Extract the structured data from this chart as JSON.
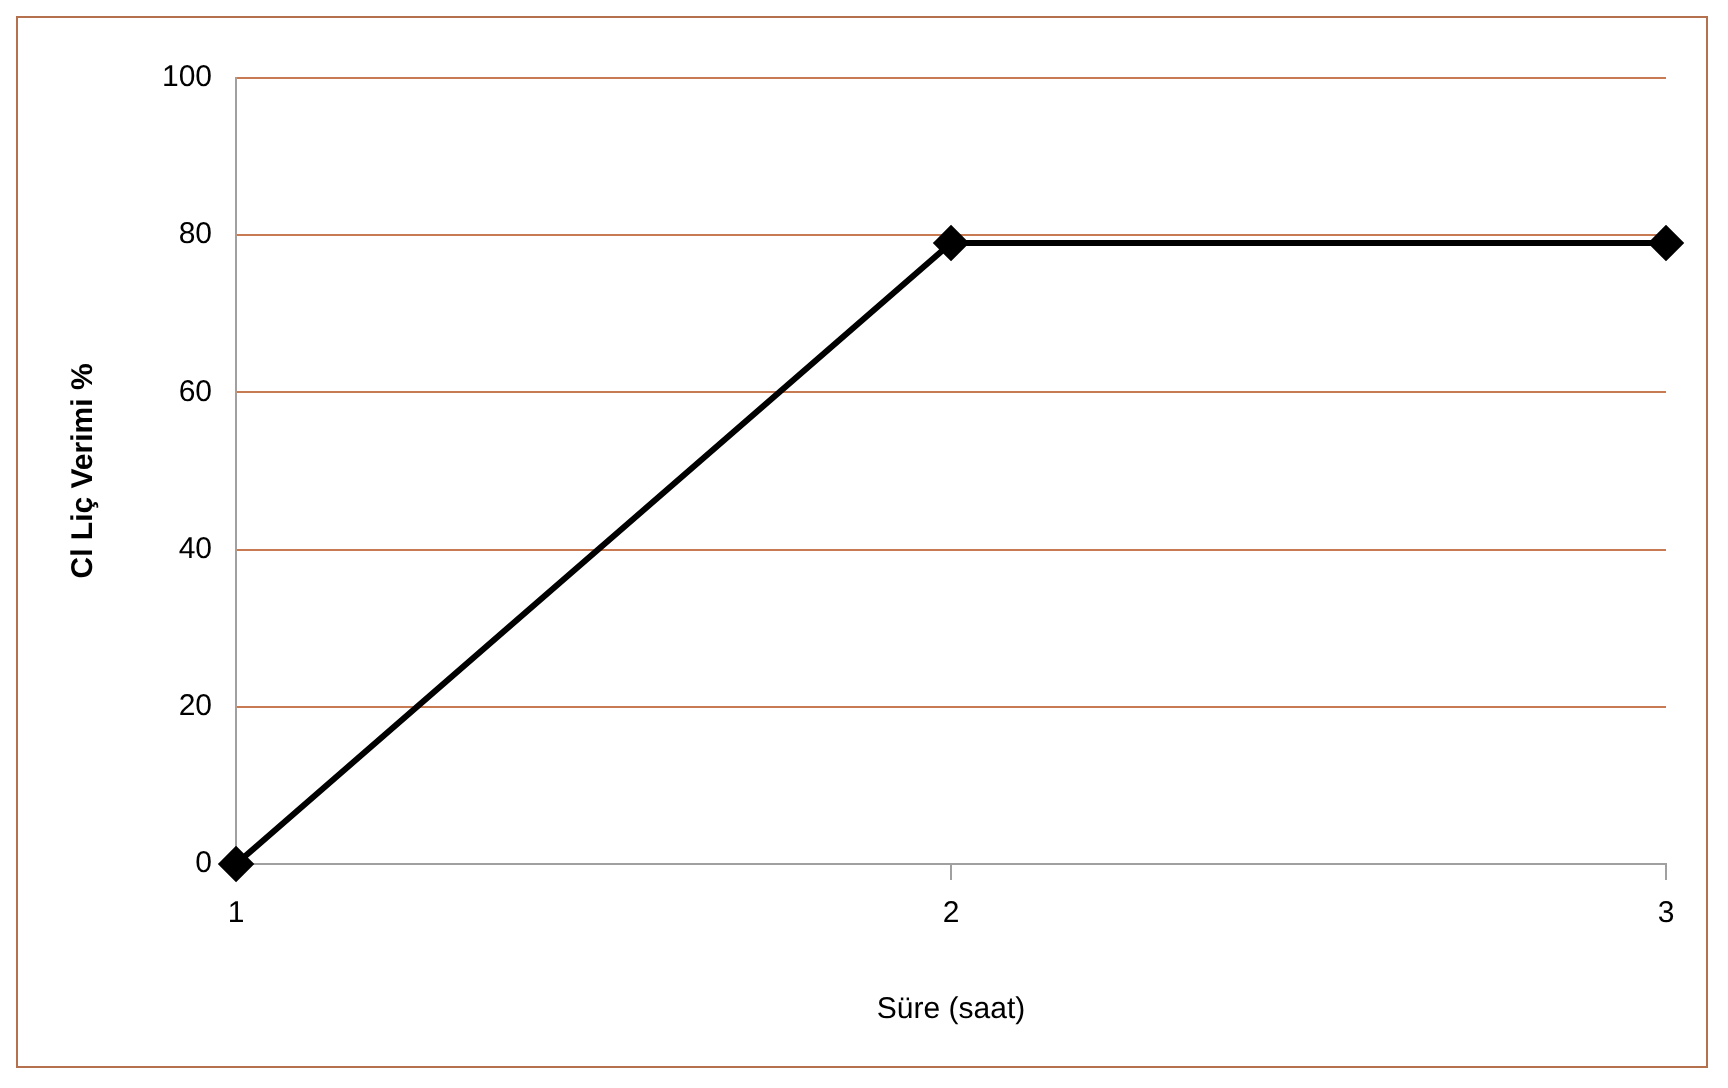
{
  "chart_data": {
    "type": "line",
    "xlabel": "Süre (saat)",
    "ylabel": "Cl Liç Verimi %",
    "x": [
      1,
      2,
      3
    ],
    "series": [
      {
        "color": "#000000",
        "values": [
          0,
          79,
          79
        ]
      }
    ],
    "xlim": [
      1,
      3
    ],
    "xticks": [
      1,
      2,
      3
    ],
    "ylim": [
      0,
      100
    ],
    "yticks": [
      0,
      20,
      40,
      60,
      80,
      100
    ],
    "grid": "y",
    "marker": "diamond",
    "legend": false
  }
}
